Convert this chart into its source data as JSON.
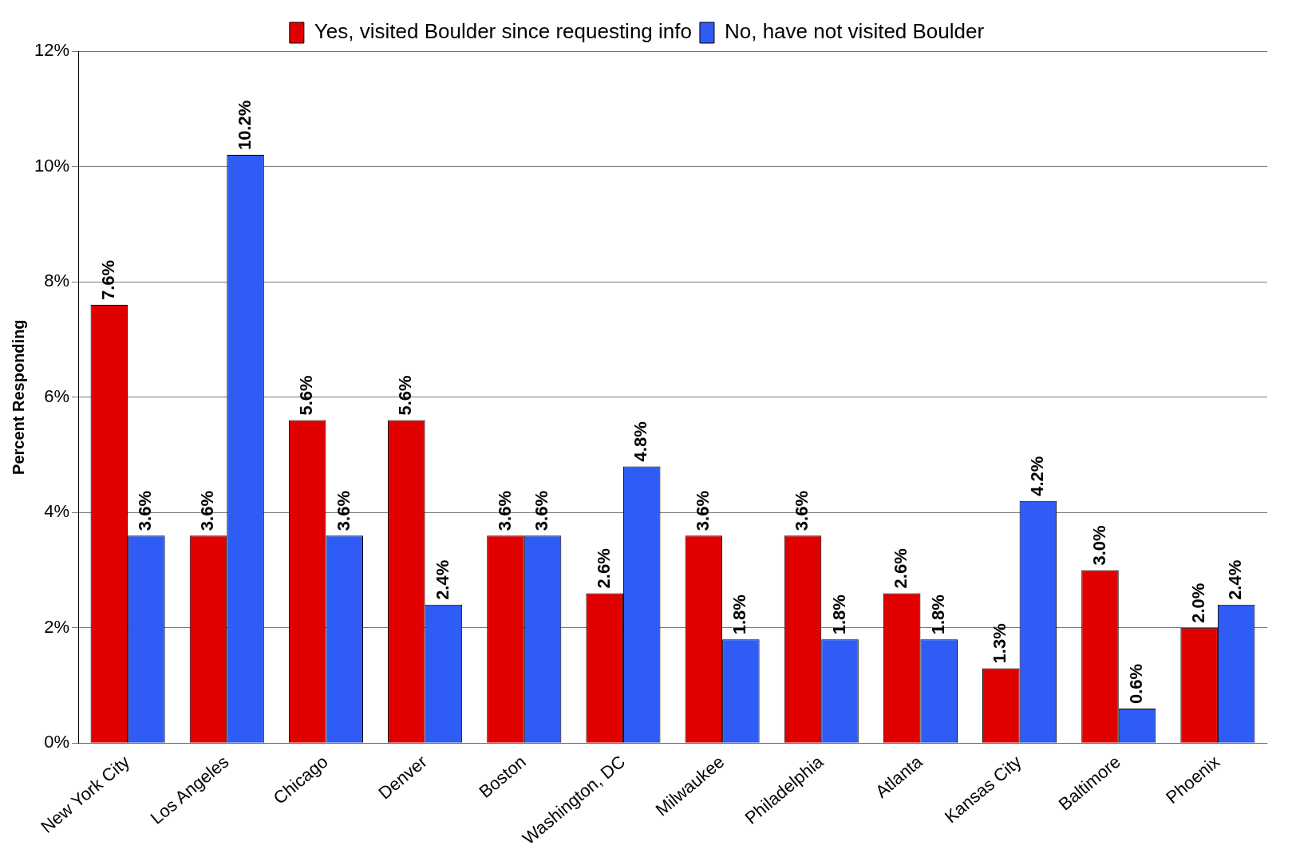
{
  "chart_data": {
    "type": "bar",
    "ylabel": "Percent Responding",
    "categories": [
      "New York City",
      "Los Angeles",
      "Chicago",
      "Denver",
      "Boston",
      "Washington, DC",
      "Milwaukee",
      "Philadelphia",
      "Atlanta",
      "Kansas City",
      "Baltimore",
      "Phoenix"
    ],
    "series": [
      {
        "name": "Yes, visited Boulder since requesting info",
        "color": "#e00000",
        "values": [
          7.6,
          3.6,
          5.6,
          5.6,
          3.6,
          2.6,
          3.6,
          3.6,
          2.6,
          1.3,
          3.0,
          2.0
        ],
        "value_labels": [
          "7.6%",
          "3.6%",
          "5.6%",
          "5.6%",
          "3.6%",
          "2.6%",
          "3.6%",
          "3.6%",
          "2.6%",
          "1.3%",
          "3.0%",
          "2.0%"
        ]
      },
      {
        "name": "No, have not visited Boulder",
        "color": "#2f5cf5",
        "values": [
          3.6,
          10.2,
          3.6,
          2.4,
          3.6,
          4.8,
          1.8,
          1.8,
          1.8,
          4.2,
          0.6,
          2.4
        ],
        "value_labels": [
          "3.6%",
          "10.2%",
          "3.6%",
          "2.4%",
          "3.6%",
          "4.8%",
          "1.8%",
          "1.8%",
          "1.8%",
          "4.2%",
          "0.6%",
          "2.4%"
        ]
      }
    ],
    "ylim": [
      0,
      12
    ],
    "yticks": [
      {
        "value": 0,
        "label": "0%"
      },
      {
        "value": 2,
        "label": "2%"
      },
      {
        "value": 4,
        "label": "4%"
      },
      {
        "value": 6,
        "label": "6%"
      },
      {
        "value": 8,
        "label": "8%"
      },
      {
        "value": 10,
        "label": "10%"
      },
      {
        "value": 12,
        "label": "12%"
      }
    ],
    "grid": "y",
    "legend": "top"
  }
}
